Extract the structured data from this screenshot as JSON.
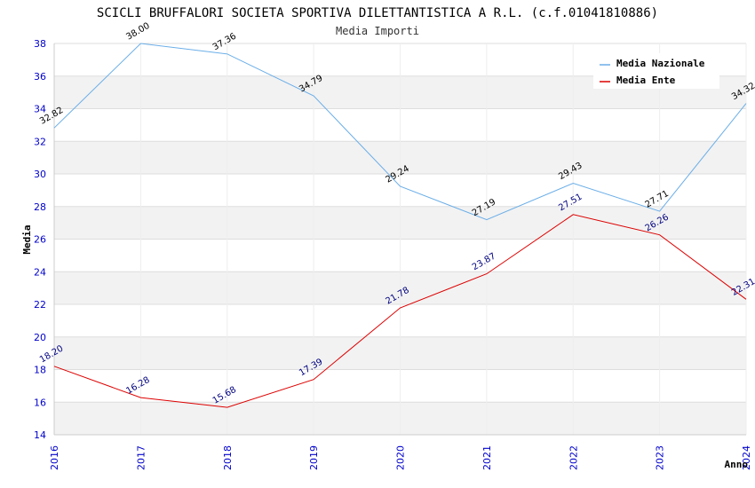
{
  "chart_data": {
    "type": "line",
    "title": "SCICLI BRUFFALORI SOCIETA SPORTIVA DILETTANTISTICA A R.L. (c.f.01041810886)",
    "subtitle": "Media Importi",
    "xlabel": "Anno",
    "ylabel": "Media",
    "x": [
      "2016",
      "2017",
      "2018",
      "2019",
      "2020",
      "2021",
      "2022",
      "2023",
      "2024"
    ],
    "ylim": [
      14,
      38
    ],
    "yticks": [
      "14",
      "16",
      "18",
      "20",
      "22",
      "24",
      "26",
      "28",
      "30",
      "32",
      "34",
      "36",
      "38"
    ],
    "grid": true,
    "legend_position": "top-right",
    "series": [
      {
        "name": "Media Nazionale",
        "color": "#6aaee8",
        "values": [
          32.82,
          38.0,
          37.36,
          34.79,
          29.24,
          27.19,
          29.43,
          27.71,
          34.32
        ],
        "labels": [
          "32.82",
          "38.00",
          "37.36",
          "34.79",
          "29.24",
          "27.19",
          "29.43",
          "27.71",
          "34.32"
        ]
      },
      {
        "name": "Media Ente",
        "color": "#dd0000",
        "values": [
          18.2,
          16.28,
          15.68,
          17.39,
          21.78,
          23.87,
          27.51,
          26.26,
          22.31
        ],
        "labels": [
          "18.20",
          "16.28",
          "15.68",
          "17.39",
          "21.78",
          "23.87",
          "27.51",
          "26.26",
          "22.31"
        ]
      }
    ]
  }
}
